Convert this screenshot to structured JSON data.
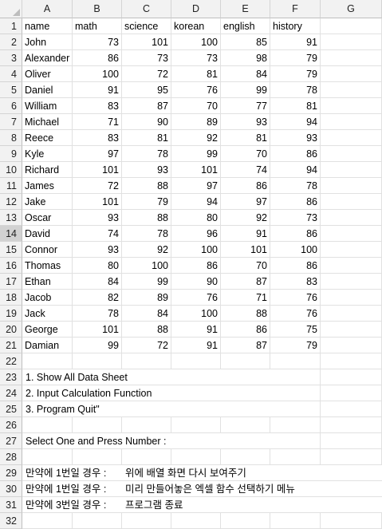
{
  "columns": [
    "A",
    "B",
    "C",
    "D",
    "E",
    "F",
    "G"
  ],
  "row_numbers": [
    "1",
    "2",
    "3",
    "4",
    "5",
    "6",
    "7",
    "8",
    "9",
    "10",
    "11",
    "12",
    "13",
    "14",
    "15",
    "16",
    "17",
    "18",
    "19",
    "20",
    "21",
    "22",
    "23",
    "24",
    "25",
    "26",
    "27",
    "28",
    "29",
    "30",
    "31",
    "32"
  ],
  "selected_row": "14",
  "headers": [
    "name",
    "math",
    "science",
    "korean",
    "english",
    "history"
  ],
  "students": [
    [
      "John",
      "73",
      "101",
      "100",
      "85",
      "91"
    ],
    [
      "Alexander",
      "86",
      "73",
      "73",
      "98",
      "79"
    ],
    [
      "Oliver",
      "100",
      "72",
      "81",
      "84",
      "79"
    ],
    [
      "Daniel",
      "91",
      "95",
      "76",
      "99",
      "78"
    ],
    [
      "William",
      "83",
      "87",
      "70",
      "77",
      "81"
    ],
    [
      "Michael",
      "71",
      "90",
      "89",
      "93",
      "94"
    ],
    [
      "Reece",
      "83",
      "81",
      "92",
      "81",
      "93"
    ],
    [
      "Kyle",
      "97",
      "78",
      "99",
      "70",
      "86"
    ],
    [
      "Richard",
      "101",
      "93",
      "101",
      "74",
      "94"
    ],
    [
      "James",
      "72",
      "88",
      "97",
      "86",
      "78"
    ],
    [
      "Jake",
      "101",
      "79",
      "94",
      "97",
      "86"
    ],
    [
      "Oscar",
      "93",
      "88",
      "80",
      "92",
      "73"
    ],
    [
      "David",
      "74",
      "78",
      "96",
      "91",
      "86"
    ],
    [
      "Connor",
      "93",
      "92",
      "100",
      "101",
      "100"
    ],
    [
      "Thomas",
      "80",
      "100",
      "86",
      "70",
      "86"
    ],
    [
      "Ethan",
      "84",
      "99",
      "90",
      "87",
      "83"
    ],
    [
      "Jacob",
      "82",
      "89",
      "76",
      "71",
      "76"
    ],
    [
      "Jack",
      "78",
      "84",
      "100",
      "88",
      "76"
    ],
    [
      "George",
      "101",
      "88",
      "91",
      "86",
      "75"
    ],
    [
      "Damian",
      "99",
      "72",
      "91",
      "87",
      "79"
    ]
  ],
  "menu": {
    "line1": "1. Show All Data Sheet",
    "line2": "2. Input Calculation Function",
    "line3": "3. Program Quit\"",
    "prompt": "Select One and Press Number :"
  },
  "notes": [
    {
      "label": "만약에 1번일 경우 :",
      "text": "위에 배열 화면 다시 보여주기"
    },
    {
      "label": "만약에 1번일 경우 :",
      "text": "미리 만들어놓은 엑셀 함수 선택하기 메뉴"
    },
    {
      "label": "만약에 3번일 경우 :",
      "text": "프로그램 종료"
    }
  ]
}
